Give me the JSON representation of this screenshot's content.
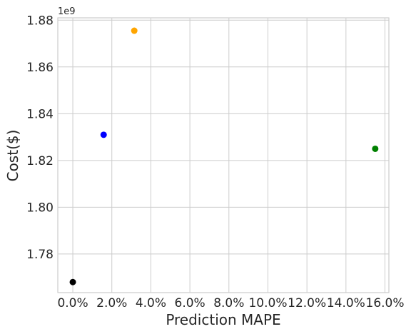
{
  "chart_data": {
    "type": "scatter",
    "xlabel": "Prediction MAPE",
    "ylabel": "Cost($)",
    "y_offset_label": "1e9",
    "xlim": [
      -0.0077,
      0.162
    ],
    "ylim": [
      1.7635,
      1.881
    ],
    "x_ticks": [
      0,
      0.02,
      0.04,
      0.06,
      0.08,
      0.1,
      0.12,
      0.14,
      0.16
    ],
    "x_tick_labels": [
      "0.0%",
      "2.0%",
      "4.0%",
      "6.0%",
      "8.0%",
      "10.0%",
      "12.0%",
      "14.0%",
      "16.0%"
    ],
    "y_ticks": [
      1.78,
      1.8,
      1.82,
      1.84,
      1.86,
      1.88
    ],
    "y_tick_labels": [
      "1.78",
      "1.80",
      "1.82",
      "1.84",
      "1.86",
      "1.88"
    ],
    "grid": true,
    "points": [
      {
        "x": 0.0,
        "y": 1.768,
        "color": "#000000"
      },
      {
        "x": 0.0158,
        "y": 1.831,
        "color": "#0000ff"
      },
      {
        "x": 0.0315,
        "y": 1.8755,
        "color": "#ffa500"
      },
      {
        "x": 0.155,
        "y": 1.825,
        "color": "#008000"
      }
    ]
  }
}
